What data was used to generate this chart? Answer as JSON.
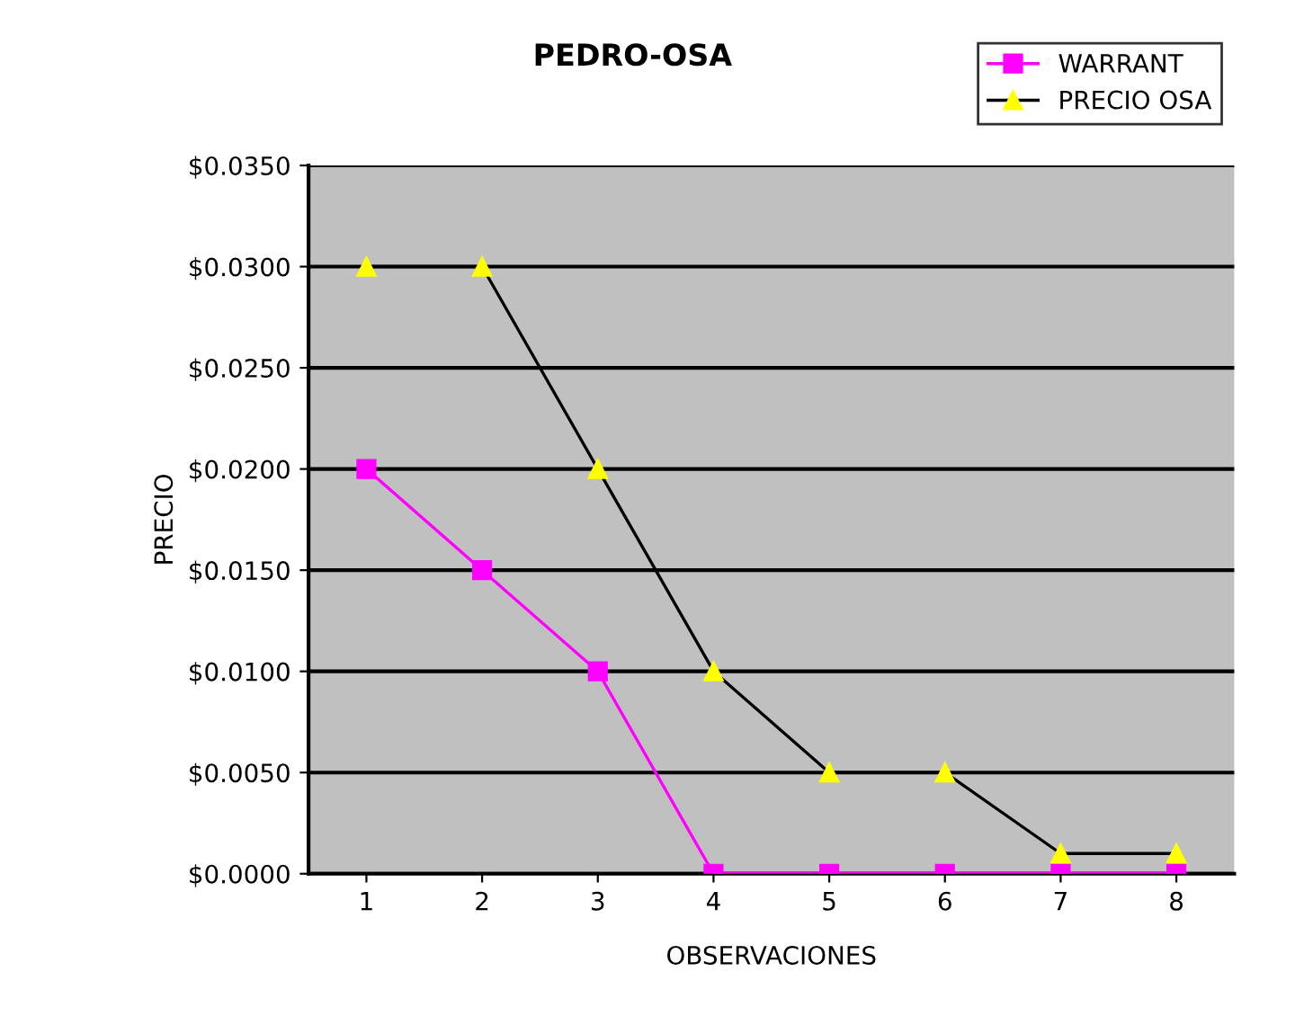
{
  "chart_data": {
    "type": "line",
    "title": "PEDRO-OSA",
    "xlabel": "OBSERVACIONES",
    "ylabel": "PRECIO",
    "categories": [
      "1",
      "2",
      "3",
      "4",
      "5",
      "6",
      "7",
      "8"
    ],
    "series": [
      {
        "name": "WARRANT",
        "color": "#ff00ff",
        "marker": "square",
        "values": [
          0.02,
          0.015,
          0.01,
          0,
          0,
          0,
          0,
          0
        ]
      },
      {
        "name": "PRECIO OSA",
        "color": "#ffff00",
        "marker": "triangle",
        "values": [
          0.03,
          0.03,
          0.02,
          0.01,
          0.005,
          0.005,
          0.001,
          0.001
        ]
      }
    ],
    "ylim": [
      0,
      0.035
    ],
    "yticks": [
      {
        "value": 0,
        "label": "$0.0000"
      },
      {
        "value": 0.005,
        "label": "$0.0050"
      },
      {
        "value": 0.01,
        "label": "$0.0100"
      },
      {
        "value": 0.015,
        "label": "$0.0150"
      },
      {
        "value": 0.02,
        "label": "$0.0200"
      },
      {
        "value": 0.025,
        "label": "$0.0250"
      },
      {
        "value": 0.03,
        "label": "$0.0300"
      },
      {
        "value": 0.035,
        "label": "$0.0350"
      }
    ],
    "grid": "y",
    "legend": "top right",
    "line_style": "solid"
  }
}
